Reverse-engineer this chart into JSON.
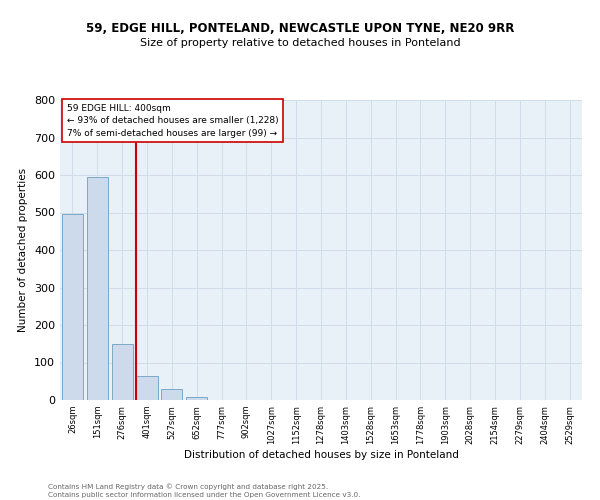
{
  "title_line1": "59, EDGE HILL, PONTELAND, NEWCASTLE UPON TYNE, NE20 9RR",
  "title_line2": "Size of property relative to detached houses in Ponteland",
  "xlabel": "Distribution of detached houses by size in Ponteland",
  "ylabel": "Number of detached properties",
  "categories": [
    "26sqm",
    "151sqm",
    "276sqm",
    "401sqm",
    "527sqm",
    "652sqm",
    "777sqm",
    "902sqm",
    "1027sqm",
    "1152sqm",
    "1278sqm",
    "1403sqm",
    "1528sqm",
    "1653sqm",
    "1778sqm",
    "1903sqm",
    "2028sqm",
    "2154sqm",
    "2279sqm",
    "2404sqm",
    "2529sqm"
  ],
  "values": [
    495,
    595,
    150,
    65,
    30,
    8,
    0,
    0,
    0,
    0,
    0,
    0,
    0,
    0,
    0,
    0,
    0,
    0,
    0,
    0,
    0
  ],
  "bar_color": "#ccdaeb",
  "bar_edge_color": "#7aaac8",
  "red_line_index": 3,
  "red_line_color": "#cc0000",
  "annotation_text": "59 EDGE HILL: 400sqm\n← 93% of detached houses are smaller (1,228)\n7% of semi-detached houses are larger (99) →",
  "annotation_box_color": "#ffffff",
  "annotation_box_edge_color": "#cc0000",
  "ylim": [
    0,
    800
  ],
  "yticks": [
    0,
    100,
    200,
    300,
    400,
    500,
    600,
    700,
    800
  ],
  "grid_color": "#d0dce8",
  "background_color": "#e8f0f8",
  "footer_line1": "Contains HM Land Registry data © Crown copyright and database right 2025.",
  "footer_line2": "Contains public sector information licensed under the Open Government Licence v3.0."
}
